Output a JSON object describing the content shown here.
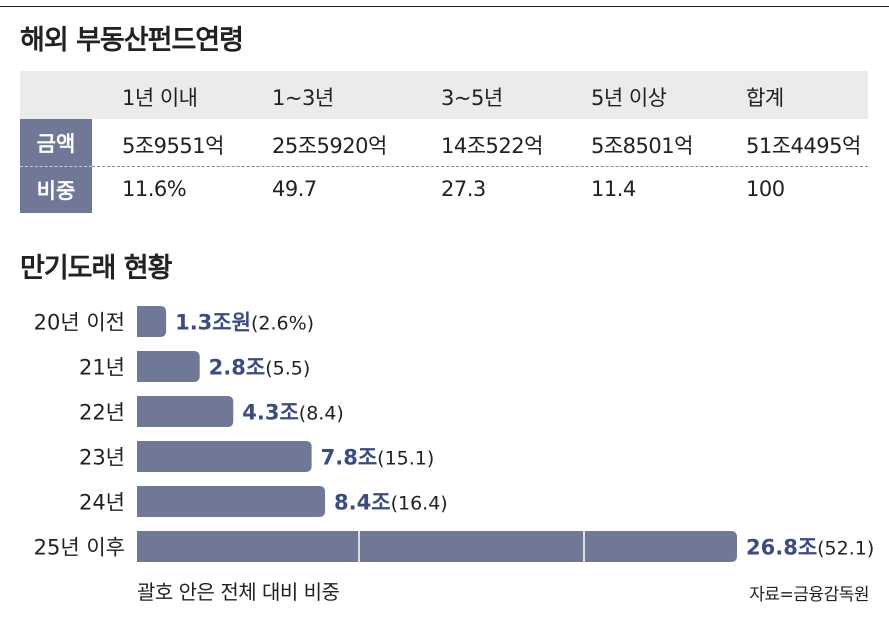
{
  "section1": {
    "title": "해외 부동산펀드연령"
  },
  "table": {
    "columns": [
      "1년 이내",
      "1~3년",
      "3~5년",
      "5년 이상",
      "합계"
    ],
    "rows": [
      {
        "label": "금액",
        "values": [
          "5조9551억",
          "25조5920억",
          "14조522억",
          "5조8501억",
          "51조4495억"
        ]
      },
      {
        "label": "비중",
        "values": [
          "11.6%",
          "49.7",
          "27.3",
          "11.4",
          "100"
        ]
      }
    ]
  },
  "section2": {
    "title": "만기도래 현황"
  },
  "chart_data": {
    "type": "bar",
    "orientation": "horizontal",
    "categories": [
      "20년 이전",
      "21년",
      "22년",
      "23년",
      "24년",
      "25년 이후"
    ],
    "values": [
      1.3,
      2.8,
      4.3,
      7.8,
      8.4,
      26.8
    ],
    "value_labels": [
      "1.3조원",
      "2.8조",
      "4.3조",
      "7.8조",
      "8.4조",
      "26.8조"
    ],
    "share_labels": [
      "(2.6%)",
      "(5.5)",
      "(8.4)",
      "(15.1)",
      "(16.4)",
      "(52.1)"
    ],
    "bar_color": "#6f7997",
    "label_color": "#3c4c7e"
  },
  "footnote": "괄호 안은 전체 대비 비중",
  "source": "자료=금융감독원"
}
